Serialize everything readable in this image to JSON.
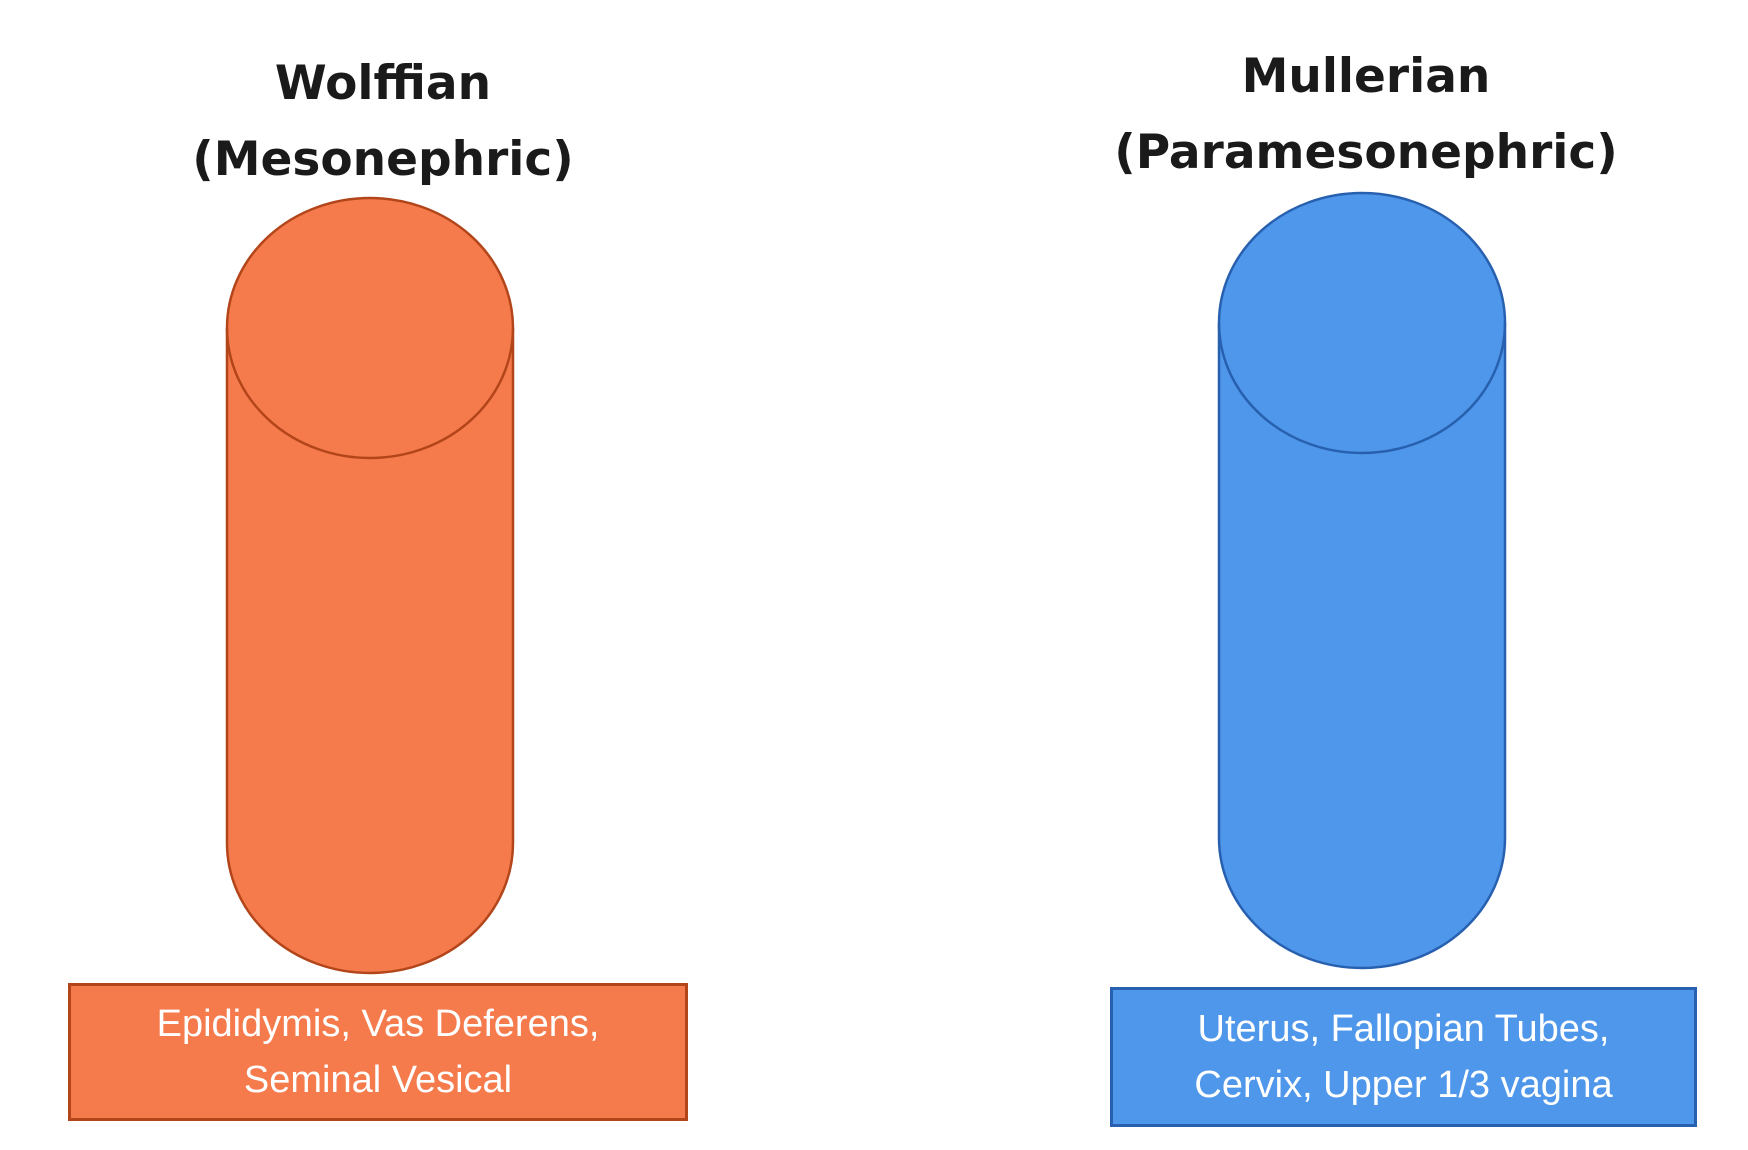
{
  "wolffian": {
    "title_line1": "Wolffian",
    "title_line2": "(Mesonephric)",
    "derivatives_line1": "Epididymis, Vas Deferens,",
    "derivatives_line2": "Seminal Vesical",
    "fill_color": "#f57a4c",
    "stroke_color": "#b3451a"
  },
  "mullerian": {
    "title_line1": "Mullerian",
    "title_line2": "(Paramesonephric)",
    "derivatives_line1": "Uterus, Fallopian Tubes,",
    "derivatives_line2": "Cervix, Upper 1/3 vagina",
    "fill_color": "#4f97ea",
    "stroke_color": "#2860b0"
  }
}
